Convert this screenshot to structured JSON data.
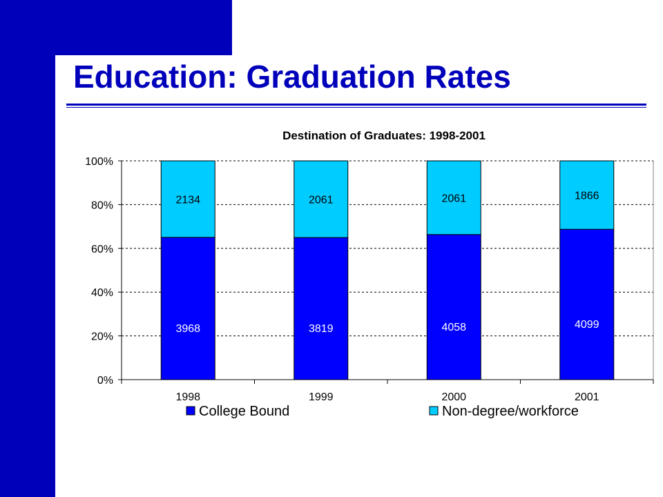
{
  "slide": {
    "title": "Education:  Graduation Rates"
  },
  "colors": {
    "brand_blue": "#0000BB",
    "college_bound": "#0000FF",
    "non_degree": "#00CCFF"
  },
  "chart_data": {
    "type": "bar",
    "stacked": "percent",
    "title": "Destination of Graduates: 1998-2001",
    "xlabel": "",
    "ylabel": "",
    "categories": [
      "1998",
      "1999",
      "2000",
      "2001"
    ],
    "series": [
      {
        "name": "College Bound",
        "values": [
          3968,
          3819,
          4058,
          4099
        ],
        "color": "#0000FF",
        "label_color": "#ffffff"
      },
      {
        "name": "Non-degree/workforce",
        "values": [
          2134,
          2061,
          2061,
          1866
        ],
        "color": "#00CCFF",
        "label_color": "#000000"
      }
    ],
    "ylim": [
      0,
      100
    ],
    "yticks": [
      "0%",
      "20%",
      "40%",
      "60%",
      "80%",
      "100%"
    ],
    "grid": true,
    "legend": "bottom"
  }
}
